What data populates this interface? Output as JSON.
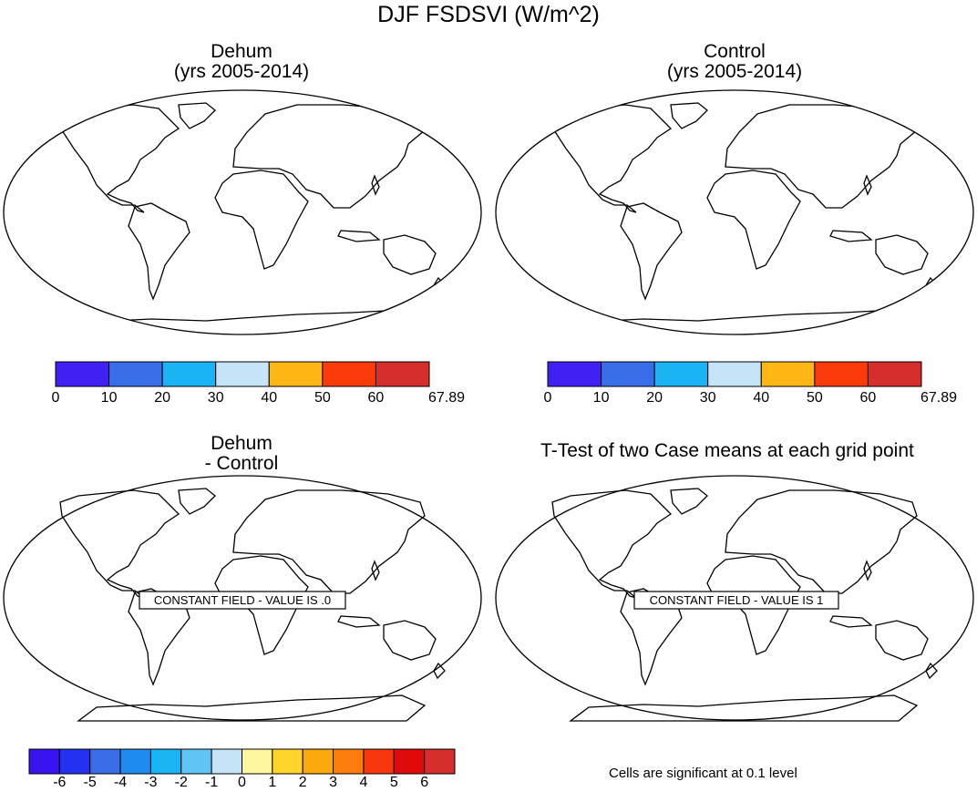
{
  "main_title": "DJF FSDSVI (W/m^2)",
  "panels": [
    {
      "title_line1": "Dehum",
      "title_line2": "(yrs 2005-2014)"
    },
    {
      "title_line1": "Control",
      "title_line2": "(yrs 2005-2014)"
    },
    {
      "title_line1": "Dehum",
      "title_line2": "- Control",
      "constant_field": "CONSTANT FIELD - VALUE IS .0"
    },
    {
      "title_line1": "T-Test of two Case means at each grid point",
      "title_line2": "",
      "constant_field": "CONSTANT FIELD - VALUE IS 1"
    }
  ],
  "colorbar_abs": {
    "labels": [
      "0",
      "10",
      "20",
      "30",
      "40",
      "50",
      "60",
      "67.89"
    ],
    "colors": [
      "#3f20f5",
      "#3a6ee8",
      "#1ab4f5",
      "#c5e4f7",
      "#fdb613",
      "#fb3a0a",
      "#d62d2d"
    ]
  },
  "colorbar_diff": {
    "labels": [
      "-6",
      "-5",
      "-4",
      "-3",
      "-2",
      "-1",
      "0",
      "1",
      "2",
      "3",
      "4",
      "5",
      "6"
    ],
    "colors": [
      "#3a12f0",
      "#2232f0",
      "#3a6ee8",
      "#1e8bf0",
      "#19b5f5",
      "#60c5f5",
      "#c5e4f7",
      "#fff7a0",
      "#fed42b",
      "#fca90c",
      "#fb7d0c",
      "#f8380c",
      "#e00a0a",
      "#d62d2d"
    ]
  },
  "footnote": "Cells are significant at 0.1 level"
}
